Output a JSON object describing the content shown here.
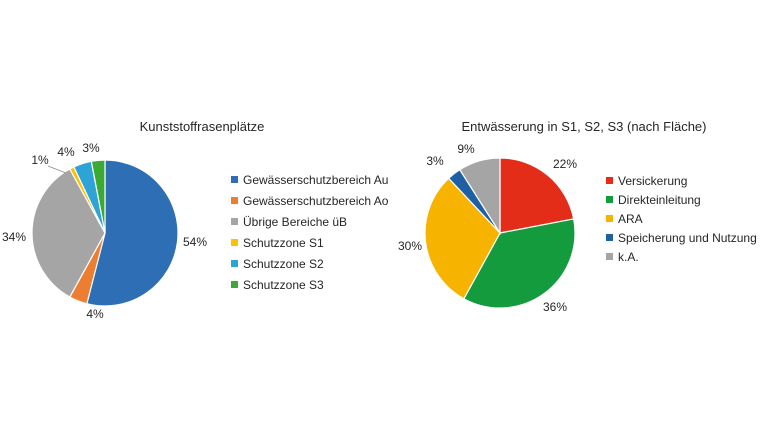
{
  "chart_data": [
    {
      "type": "pie",
      "title": "Kunststoffrasenplätze",
      "series": [
        {
          "name": "Gewässerschutzbereich Au",
          "value": 54,
          "label": "54%",
          "color": "#2E6EB5"
        },
        {
          "name": "Gewässerschutzbereich Ao",
          "value": 4,
          "label": "4%",
          "color": "#ED7D31"
        },
        {
          "name": "Übrige Bereiche üB",
          "value": 34,
          "label": "34%",
          "color": "#A5A5A5"
        },
        {
          "name": "Schutzzone S1",
          "value": 1,
          "label": "1%",
          "color": "#FFC000"
        },
        {
          "name": "Schutzzone S2",
          "value": 4,
          "label": "4%",
          "color": "#2EA3D6"
        },
        {
          "name": "Schutzzone S3",
          "value": 3,
          "label": "3%",
          "color": "#3AAA35"
        }
      ],
      "legend": "right"
    },
    {
      "type": "pie",
      "title": "Entwässerung in S1, S2, S3 (nach Fläche)",
      "series": [
        {
          "name": "Versickerung",
          "value": 22,
          "label": "22%",
          "color": "#E32D19"
        },
        {
          "name": "Direkteinleitung",
          "value": 36,
          "label": "36%",
          "color": "#139B3E"
        },
        {
          "name": "ARA",
          "value": 30,
          "label": "30%",
          "color": "#F6B400"
        },
        {
          "name": "Speicherung und Nutzung",
          "value": 3,
          "label": "3%",
          "color": "#1F5FA3"
        },
        {
          "name": "k.A.",
          "value": 9,
          "label": "9%",
          "color": "#A5A5A5"
        }
      ],
      "legend": "right"
    }
  ]
}
